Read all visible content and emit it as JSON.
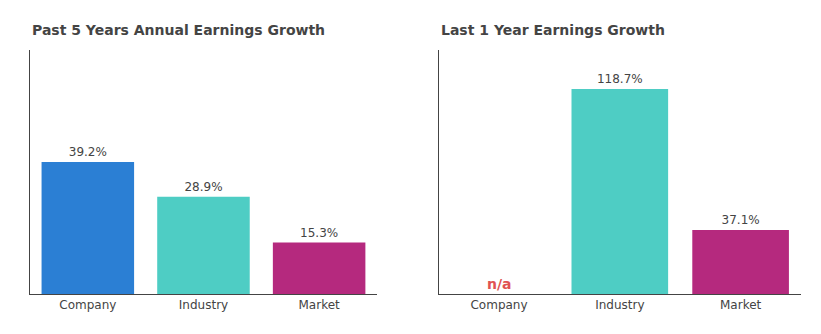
{
  "chart_data": [
    {
      "type": "bar",
      "title": "Past 5 Years Annual Earnings Growth",
      "categories": [
        "Company",
        "Industry",
        "Market"
      ],
      "values": [
        39.2,
        28.9,
        15.3
      ],
      "value_labels": [
        "39.2%",
        "28.9%",
        "15.3%"
      ],
      "colors": [
        "#2b7fd4",
        "#4ecdc4",
        "#b5297e"
      ],
      "ylim": [
        0,
        72.52
      ],
      "data_labels": true,
      "tick_labels": "x"
    },
    {
      "type": "bar",
      "title": "Last 1 Year Earnings Growth",
      "categories": [
        "Company",
        "Industry",
        "Market"
      ],
      "values": [
        null,
        118.7,
        37.1
      ],
      "value_labels": [
        null,
        "118.7%",
        "37.1%"
      ],
      "colors": [
        "#2b7fd4",
        "#4ecdc4",
        "#b5297e"
      ],
      "ylim": [
        0,
        141.253
      ],
      "data_labels": true,
      "tick_labels": "x",
      "annotations": [
        {
          "text": "n/a",
          "x": "Company",
          "color": "#e05252"
        }
      ]
    }
  ]
}
